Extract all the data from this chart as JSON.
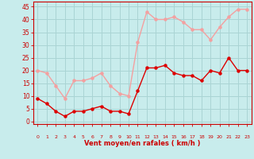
{
  "hours": [
    0,
    1,
    2,
    3,
    4,
    5,
    6,
    7,
    8,
    9,
    10,
    11,
    12,
    13,
    14,
    15,
    16,
    17,
    18,
    19,
    20,
    21,
    22,
    23
  ],
  "wind_avg": [
    9,
    7,
    4,
    2,
    4,
    4,
    5,
    6,
    4,
    4,
    3,
    12,
    21,
    21,
    22,
    19,
    18,
    18,
    16,
    20,
    19,
    25,
    20,
    20
  ],
  "wind_gust": [
    20,
    19,
    14,
    9,
    16,
    16,
    17,
    19,
    14,
    11,
    10,
    31,
    43,
    40,
    40,
    41,
    39,
    36,
    36,
    32,
    37,
    41,
    44,
    44
  ],
  "avg_color": "#dd0000",
  "gust_color": "#f4a0a0",
  "bg_color": "#c8ecec",
  "grid_color": "#aad4d4",
  "text_color": "#cc0000",
  "xlabel": "Vent moyen/en rafales ( km/h )",
  "ylim": [
    -1,
    47
  ],
  "yticks": [
    0,
    5,
    10,
    15,
    20,
    25,
    30,
    35,
    40,
    45
  ],
  "marker_size": 2.2,
  "line_width": 1.0
}
